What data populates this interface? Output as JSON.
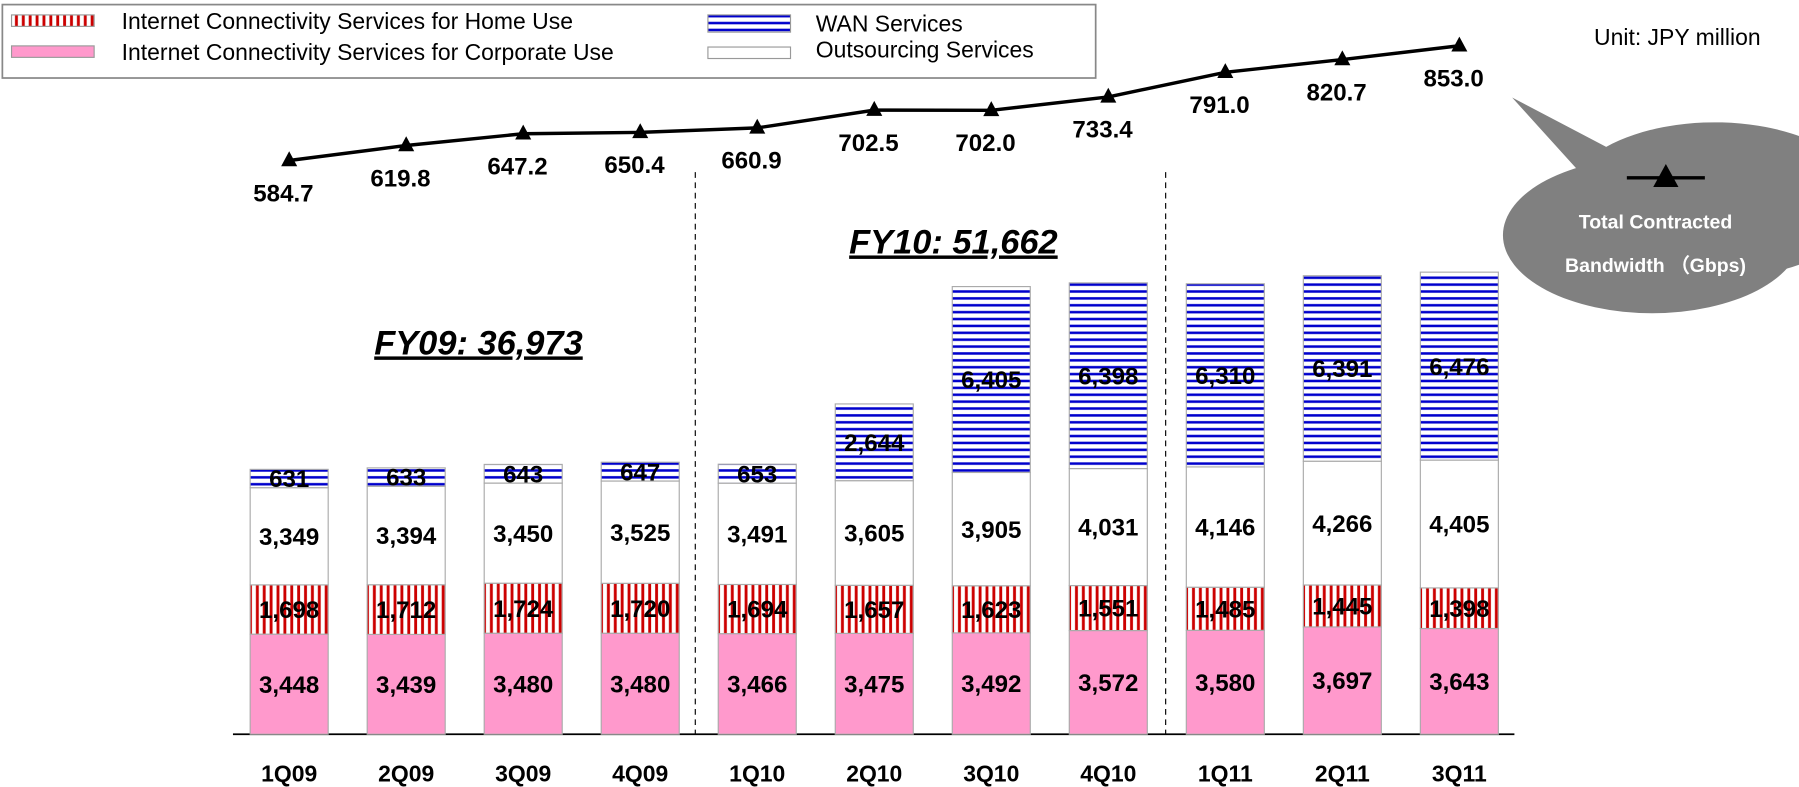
{
  "chart_data": {
    "type": "stacked_bar_line",
    "categories": [
      "1Q09",
      "2Q09",
      "3Q09",
      "4Q09",
      "1Q10",
      "2Q10",
      "3Q10",
      "4Q10",
      "1Q11",
      "2Q11",
      "3Q11"
    ],
    "ylim": [
      0,
      25300
    ],
    "y2lim": [
      -757,
      960
    ],
    "series": [
      {
        "name": "Internet Connectivity Services for Corporate Use",
        "color": "#ff99cc",
        "pattern": "solid",
        "values": [
          3448,
          3439,
          3480,
          3480,
          3466,
          3475,
          3492,
          3572,
          3580,
          3697,
          3643
        ],
        "value_labels": [
          "3,448",
          "3,439",
          "3,480",
          "3,480",
          "3,466",
          "3,475",
          "3,492",
          "3,572",
          "3,580",
          "3,697",
          "3,643"
        ]
      },
      {
        "name": "Internet Connectivity Services for Home Use",
        "color": "#cc0000",
        "pattern": "vertical",
        "values": [
          1698,
          1712,
          1724,
          1720,
          1694,
          1657,
          1623,
          1551,
          1485,
          1445,
          1398
        ],
        "value_labels": [
          "1,698",
          "1,712",
          "1,724",
          "1,720",
          "1,694",
          "1,657",
          "1,623",
          "1,551",
          "1,485",
          "1,445",
          "1,398"
        ]
      },
      {
        "name": "Outsourcing Services",
        "color": "#ffffff",
        "pattern": "solid",
        "values": [
          3349,
          3394,
          3450,
          3525,
          3491,
          3605,
          3905,
          4031,
          4146,
          4266,
          4405
        ],
        "value_labels": [
          "3,349",
          "3,394",
          "3,450",
          "3,525",
          "3,491",
          "3,605",
          "3,905",
          "4,031",
          "4,146",
          "4,266",
          "4,405"
        ]
      },
      {
        "name": "WAN Services",
        "color": "#0000cc",
        "pattern": "horizontal",
        "values": [
          631,
          633,
          643,
          647,
          653,
          2644,
          6405,
          6398,
          6310,
          6391,
          6476
        ],
        "value_labels": [
          "631",
          "633",
          "643",
          "647",
          "653",
          "2,644",
          "6,405",
          "6,398",
          "6,310",
          "6,391",
          "6,476"
        ]
      },
      {
        "name": "Total Contracted Bandwidth （Gbps)",
        "color": "#000000",
        "type": "line",
        "axis": "y2",
        "values": [
          584.7,
          619.8,
          647.2,
          650.4,
          660.9,
          702.5,
          702.0,
          733.4,
          791.0,
          820.7,
          853.0
        ],
        "value_labels": [
          "584.7",
          "619.8",
          "647.2",
          "650.4",
          "660.9",
          "702.5",
          "702.0",
          "733.4",
          "791.0",
          "820.7",
          "853.0"
        ]
      }
    ],
    "annotations": [
      "FY09: 36,973",
      "FY10: 51,662"
    ],
    "unit": "Unit: JPY million"
  }
}
